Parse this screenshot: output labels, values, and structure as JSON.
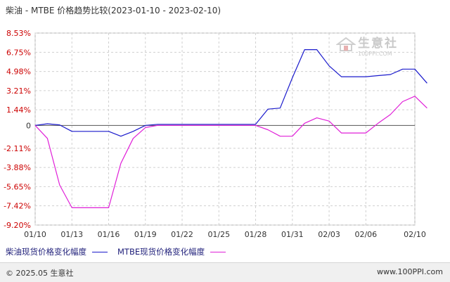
{
  "title": "柴油 - MTBE 价格趋势比较(2023-01-10 - 2023-02-10)",
  "watermark": {
    "name": "生意社",
    "url": "100PPI.COM"
  },
  "footer": {
    "copyright": "© 2025.05 生意社",
    "site": "www.100PPI.com"
  },
  "colors": {
    "diesel": "#1a1acc",
    "mtbe": "#e020d8",
    "zero_line": "#555555",
    "grid": "#d0d0d0",
    "pos_label": "#cc0000",
    "neg_label": "#cc0000"
  },
  "chart_data": {
    "type": "line",
    "title": "柴油 - MTBE 价格趋势比较(2023-01-10 - 2023-02-10)",
    "ylim": [
      -9.2,
      8.53
    ],
    "y_ticks": [
      "8.53%",
      "6.75%",
      "4.98%",
      "3.21%",
      "1.44%",
      "0",
      "-2.11%",
      "-3.88%",
      "-5.65%",
      "-7.42%",
      "-9.20%"
    ],
    "y_tick_values": [
      8.53,
      6.75,
      4.98,
      3.21,
      1.44,
      0,
      -2.11,
      -3.88,
      -5.65,
      -7.42,
      -9.2
    ],
    "x_ticks": [
      "01/10",
      "01/13",
      "01/16",
      "01/19",
      "01/22",
      "01/25",
      "01/28",
      "01/31",
      "02/03",
      "02/06",
      "02/10"
    ],
    "x_start": "2023-01-10",
    "x_end": "2023-02-10",
    "legend_position": "bottom",
    "grid": true,
    "series": [
      {
        "name": "柴油现货价格变化幅度",
        "color": "#1a1acc",
        "points": [
          [
            "2023-01-10",
            0.0
          ],
          [
            "2023-01-11",
            0.15
          ],
          [
            "2023-01-12",
            0.05
          ],
          [
            "2023-01-13",
            -0.55
          ],
          [
            "2023-01-14",
            -0.55
          ],
          [
            "2023-01-15",
            -0.55
          ],
          [
            "2023-01-16",
            -0.55
          ],
          [
            "2023-01-17",
            -1.0
          ],
          [
            "2023-01-18",
            -0.55
          ],
          [
            "2023-01-19",
            0.0
          ],
          [
            "2023-01-20",
            0.1
          ],
          [
            "2023-01-21",
            0.1
          ],
          [
            "2023-01-22",
            0.1
          ],
          [
            "2023-01-23",
            0.1
          ],
          [
            "2023-01-24",
            0.1
          ],
          [
            "2023-01-25",
            0.1
          ],
          [
            "2023-01-26",
            0.1
          ],
          [
            "2023-01-27",
            0.1
          ],
          [
            "2023-01-28",
            0.1
          ],
          [
            "2023-01-29",
            1.5
          ],
          [
            "2023-01-30",
            1.6
          ],
          [
            "2023-01-31",
            4.4
          ],
          [
            "2023-02-01",
            7.0
          ],
          [
            "2023-02-02",
            7.0
          ],
          [
            "2023-02-03",
            5.5
          ],
          [
            "2023-02-04",
            4.5
          ],
          [
            "2023-02-05",
            4.5
          ],
          [
            "2023-02-06",
            4.5
          ],
          [
            "2023-02-07",
            4.6
          ],
          [
            "2023-02-08",
            4.7
          ],
          [
            "2023-02-09",
            5.2
          ],
          [
            "2023-02-10",
            5.2
          ],
          [
            "2023-02-11",
            3.9
          ]
        ]
      },
      {
        "name": "MTBE现货价格变化幅度",
        "color": "#e020d8",
        "points": [
          [
            "2023-01-10",
            0.0
          ],
          [
            "2023-01-11",
            -1.2
          ],
          [
            "2023-01-12",
            -5.5
          ],
          [
            "2023-01-13",
            -7.6
          ],
          [
            "2023-01-14",
            -7.6
          ],
          [
            "2023-01-15",
            -7.6
          ],
          [
            "2023-01-16",
            -7.6
          ],
          [
            "2023-01-17",
            -3.5
          ],
          [
            "2023-01-18",
            -1.2
          ],
          [
            "2023-01-19",
            -0.2
          ],
          [
            "2023-01-20",
            0.0
          ],
          [
            "2023-01-21",
            0.0
          ],
          [
            "2023-01-22",
            0.0
          ],
          [
            "2023-01-23",
            0.0
          ],
          [
            "2023-01-24",
            0.0
          ],
          [
            "2023-01-25",
            0.0
          ],
          [
            "2023-01-26",
            0.0
          ],
          [
            "2023-01-27",
            0.0
          ],
          [
            "2023-01-28",
            0.0
          ],
          [
            "2023-01-29",
            -0.4
          ],
          [
            "2023-01-30",
            -1.0
          ],
          [
            "2023-01-31",
            -1.0
          ],
          [
            "2023-02-01",
            0.2
          ],
          [
            "2023-02-02",
            0.7
          ],
          [
            "2023-02-03",
            0.4
          ],
          [
            "2023-02-04",
            -0.7
          ],
          [
            "2023-02-05",
            -0.7
          ],
          [
            "2023-02-06",
            -0.7
          ],
          [
            "2023-02-07",
            0.2
          ],
          [
            "2023-02-08",
            1.0
          ],
          [
            "2023-02-09",
            2.2
          ],
          [
            "2023-02-10",
            2.7
          ],
          [
            "2023-02-11",
            1.6
          ]
        ]
      }
    ]
  }
}
